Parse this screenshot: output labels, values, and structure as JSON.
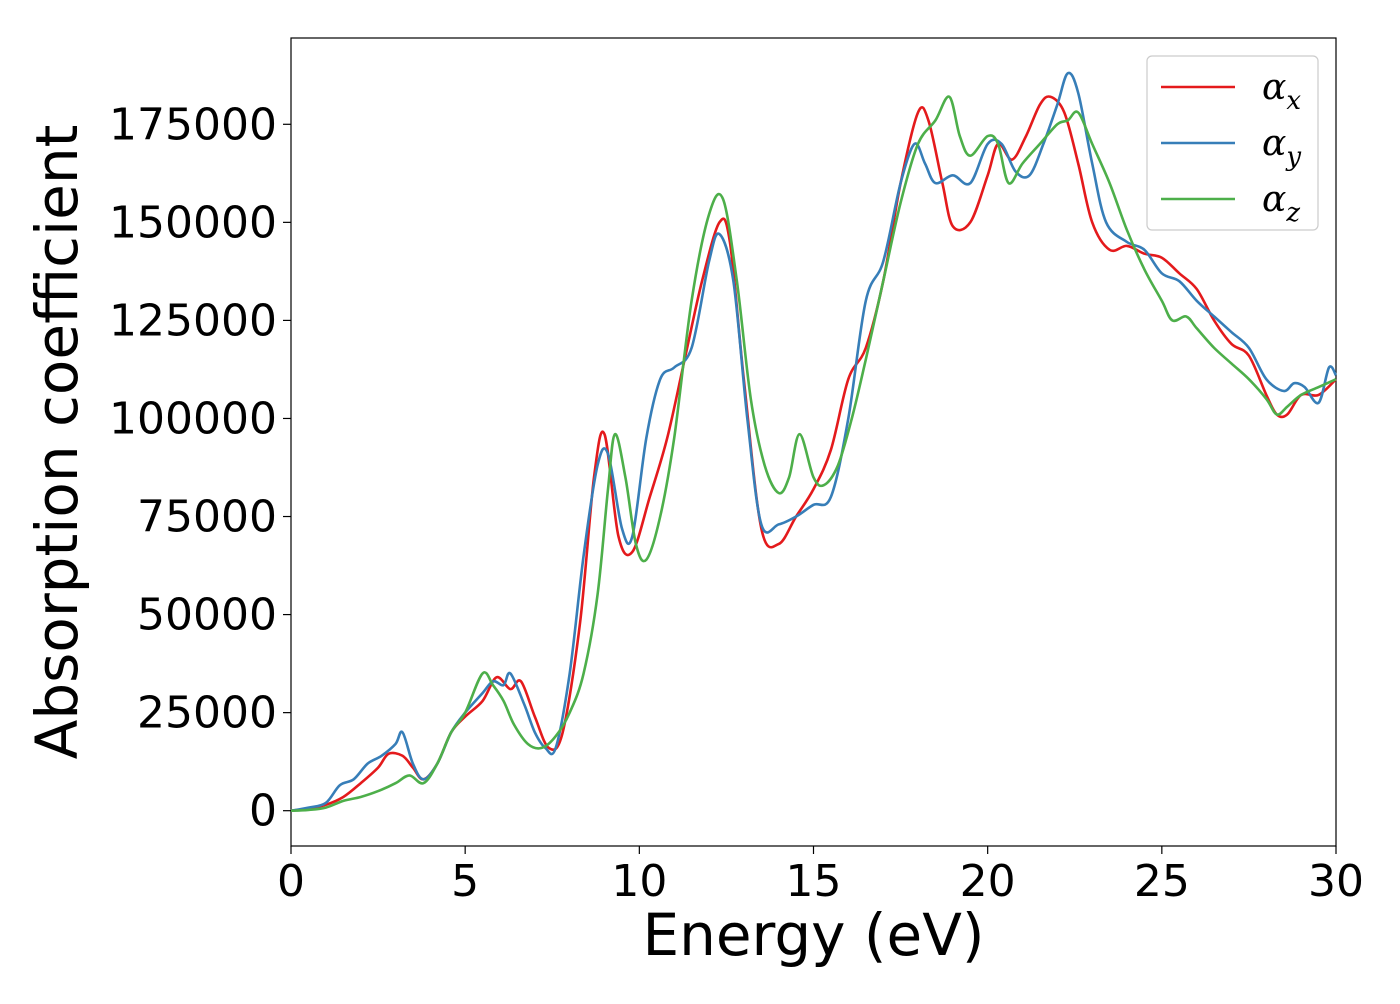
{
  "chart_data": {
    "type": "line",
    "xlabel": "Energy (eV)",
    "ylabel": "Absorption coefficient",
    "xlim": [
      0,
      30
    ],
    "ylim": [
      -9000,
      197000
    ],
    "xticks": [
      0,
      5,
      10,
      15,
      20,
      25,
      30
    ],
    "xtick_labels": [
      "0",
      "5",
      "10",
      "15",
      "20",
      "25",
      "30"
    ],
    "yticks": [
      0,
      25000,
      50000,
      75000,
      100000,
      125000,
      150000,
      175000
    ],
    "ytick_labels": [
      "0",
      "25000",
      "50000",
      "75000",
      "100000",
      "125000",
      "150000",
      "175000"
    ],
    "grid": false,
    "legend_position": "top-right",
    "series": [
      {
        "name": "αx",
        "legend_base": "α",
        "legend_sub": "x",
        "color": "#e41a1c",
        "x": [
          0,
          0.5,
          1,
          1.5,
          2,
          2.5,
          2.8,
          3.2,
          3.5,
          3.8,
          4.2,
          4.6,
          5,
          5.5,
          5.9,
          6.3,
          6.6,
          7,
          7.4,
          7.8,
          8.3,
          8.7,
          9,
          9.4,
          9.8,
          10.3,
          10.8,
          11.3,
          11.8,
          12.3,
          12.6,
          13,
          13.5,
          14,
          14.5,
          15,
          15.5,
          16,
          16.5,
          17,
          17.5,
          18,
          18.3,
          18.7,
          19,
          19.5,
          20,
          20.3,
          20.7,
          21.1,
          21.5,
          21.8,
          22.2,
          22.6,
          23,
          23.5,
          24,
          24.5,
          25,
          25.5,
          26,
          26.5,
          27,
          27.5,
          28,
          28.3,
          28.6,
          29,
          29.5,
          30
        ],
        "y": [
          0,
          500,
          1500,
          3500,
          7000,
          11000,
          14500,
          14000,
          11000,
          8000,
          12000,
          20000,
          24000,
          28000,
          34000,
          31000,
          33000,
          24000,
          16000,
          20000,
          48000,
          85000,
          96000,
          70000,
          66000,
          80000,
          95000,
          115000,
          135000,
          150000,
          145000,
          110000,
          72000,
          68000,
          75000,
          82000,
          92000,
          110000,
          118000,
          135000,
          160000,
          178000,
          176000,
          160000,
          149000,
          150000,
          162000,
          170000,
          166000,
          172000,
          180000,
          182000,
          178000,
          165000,
          150000,
          143000,
          144000,
          142000,
          141000,
          137000,
          133000,
          125000,
          119000,
          116000,
          106000,
          101000,
          101000,
          106000,
          106000,
          110000
        ]
      },
      {
        "name": "αy",
        "legend_base": "α",
        "legend_sub": "y",
        "color": "#377eb8",
        "x": [
          0,
          0.5,
          1,
          1.4,
          1.8,
          2.2,
          2.6,
          3,
          3.2,
          3.5,
          3.8,
          4.2,
          4.6,
          5,
          5.5,
          5.8,
          6.1,
          6.3,
          6.7,
          7,
          7.3,
          7.6,
          8,
          8.4,
          8.8,
          9.1,
          9.5,
          9.8,
          10.2,
          10.6,
          11,
          11.5,
          12,
          12.3,
          12.7,
          13.1,
          13.5,
          14,
          14.5,
          15,
          15.5,
          16,
          16.5,
          17,
          17.5,
          17.9,
          18.2,
          18.5,
          19,
          19.5,
          20,
          20.4,
          20.8,
          21.2,
          21.6,
          22,
          22.3,
          22.6,
          23,
          23.4,
          24,
          24.5,
          25,
          25.5,
          26,
          26.5,
          27,
          27.5,
          28,
          28.5,
          28.8,
          29.1,
          29.5,
          29.8,
          30
        ],
        "y": [
          0,
          800,
          2000,
          6500,
          8000,
          12000,
          14000,
          17000,
          20000,
          12000,
          8000,
          12000,
          20000,
          25000,
          30000,
          33000,
          32000,
          35000,
          27000,
          20000,
          16000,
          16000,
          35000,
          65000,
          88000,
          91000,
          72000,
          70000,
          95000,
          110000,
          113000,
          118000,
          140000,
          147000,
          135000,
          100000,
          73000,
          73000,
          75000,
          78000,
          80000,
          100000,
          130000,
          140000,
          160000,
          170000,
          165000,
          160000,
          162000,
          160000,
          170000,
          170000,
          163000,
          162000,
          170000,
          180000,
          188000,
          183000,
          165000,
          150000,
          145000,
          143000,
          137000,
          135000,
          130000,
          126000,
          122000,
          118000,
          110000,
          107000,
          109000,
          108000,
          104000,
          113000,
          111000
        ]
      },
      {
        "name": "αz",
        "legend_base": "α",
        "legend_sub": "z",
        "color": "#4daf4a",
        "x": [
          0,
          0.5,
          1,
          1.5,
          2,
          2.5,
          3,
          3.4,
          3.8,
          4.2,
          4.6,
          5,
          5.5,
          5.8,
          6.1,
          6.4,
          6.8,
          7.2,
          7.6,
          8,
          8.4,
          8.8,
          9.1,
          9.3,
          9.6,
          9.9,
          10.2,
          10.6,
          11,
          11.5,
          12,
          12.4,
          12.8,
          13.2,
          13.6,
          14,
          14.3,
          14.6,
          15,
          15.3,
          15.7,
          16.1,
          16.5,
          17,
          17.5,
          18,
          18.5,
          18.9,
          19.2,
          19.5,
          20,
          20.3,
          20.6,
          21,
          21.5,
          22,
          22.3,
          22.6,
          23,
          23.5,
          24,
          24.5,
          25,
          25.3,
          25.7,
          26,
          26.5,
          27,
          27.5,
          28,
          28.3,
          28.6,
          29,
          29.5,
          30
        ],
        "y": [
          0,
          200,
          800,
          2500,
          3500,
          5000,
          7000,
          9000,
          7000,
          12000,
          20000,
          25000,
          35000,
          32000,
          28000,
          22000,
          17000,
          16000,
          19000,
          25000,
          35000,
          55000,
          82000,
          96000,
          85000,
          68000,
          64000,
          75000,
          95000,
          130000,
          152000,
          156000,
          135000,
          105000,
          88000,
          81000,
          85000,
          96000,
          85000,
          83000,
          88000,
          100000,
          115000,
          135000,
          155000,
          170000,
          176000,
          182000,
          172000,
          167000,
          172000,
          170000,
          160000,
          165000,
          170000,
          175000,
          176000,
          178000,
          170000,
          160000,
          148000,
          138000,
          130000,
          125000,
          126000,
          123000,
          118000,
          114000,
          110000,
          105000,
          101000,
          103000,
          106000,
          108000,
          110000
        ]
      }
    ]
  }
}
